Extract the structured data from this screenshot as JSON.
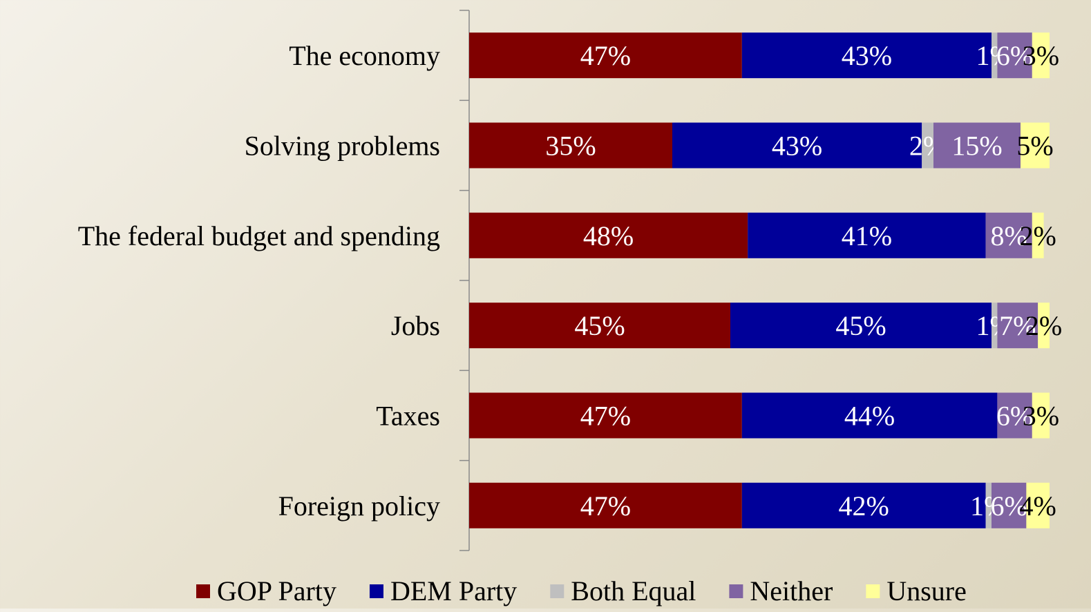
{
  "chart_data": {
    "type": "bar",
    "stacked": true,
    "orientation": "horizontal",
    "categories": [
      "The economy",
      "Solving problems",
      "The federal budget and spending",
      "Jobs",
      "Taxes",
      "Foreign policy"
    ],
    "series": [
      {
        "name": "GOP Party",
        "color": "#800000",
        "label_color": "#ffffff",
        "values": [
          47,
          35,
          48,
          45,
          47,
          47
        ],
        "labels": [
          "47%",
          "35%",
          "48%",
          "45%",
          "47%",
          "47%"
        ]
      },
      {
        "name": "DEM Party",
        "color": "#000099",
        "label_color": "#ffffff",
        "values": [
          43,
          43,
          41,
          45,
          44,
          42
        ],
        "labels": [
          "43%",
          "43%",
          "41%",
          "45%",
          "44%",
          "42%"
        ]
      },
      {
        "name": "Both Equal",
        "color": "#bfbfbf",
        "label_color": "#ffffff",
        "values": [
          1,
          2,
          0,
          1,
          0,
          1
        ],
        "labels": [
          "1%",
          "2%",
          "",
          "1%",
          "",
          "1%"
        ]
      },
      {
        "name": "Neither",
        "color": "#8064a2",
        "label_color": "#ffffff",
        "values": [
          6,
          15,
          8,
          7,
          6,
          6
        ],
        "labels": [
          "6%",
          "15%",
          "8%",
          "7%",
          "6%",
          "6%"
        ]
      },
      {
        "name": "Unsure",
        "color": "#ffff99",
        "label_color": "#000000",
        "values": [
          3,
          5,
          2,
          2,
          3,
          4
        ],
        "labels": [
          "3%",
          "5%",
          "2%",
          "2%",
          "3%",
          "4%"
        ]
      }
    ],
    "xlim": [
      0,
      100
    ],
    "grid": false,
    "legend_position": "bottom"
  }
}
